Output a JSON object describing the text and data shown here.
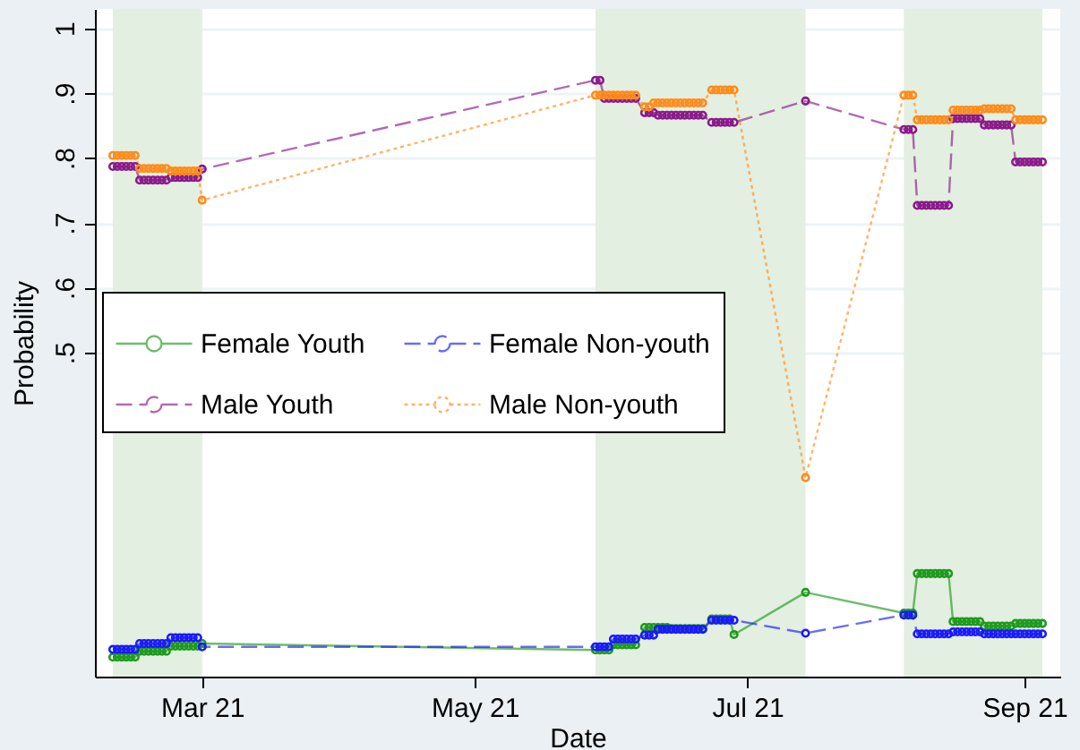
{
  "chart_data": {
    "type": "line",
    "xlabel": "Date",
    "ylabel": "Probability",
    "x": [
      "2021-02-09",
      "2021-02-10",
      "2021-02-11",
      "2021-02-12",
      "2021-02-13",
      "2021-02-14",
      "2021-02-15",
      "2021-02-16",
      "2021-02-17",
      "2021-02-18",
      "2021-02-19",
      "2021-02-20",
      "2021-02-21",
      "2021-02-22",
      "2021-02-23",
      "2021-02-24",
      "2021-02-25",
      "2021-02-26",
      "2021-02-27",
      "2021-02-28",
      "2021-03-01",
      "2021-05-28",
      "2021-05-29",
      "2021-05-30",
      "2021-05-31",
      "2021-06-01",
      "2021-06-02",
      "2021-06-03",
      "2021-06-04",
      "2021-06-05",
      "2021-06-06",
      "2021-06-08",
      "2021-06-09",
      "2021-06-10",
      "2021-06-11",
      "2021-06-12",
      "2021-06-13",
      "2021-06-14",
      "2021-06-15",
      "2021-06-16",
      "2021-06-17",
      "2021-06-18",
      "2021-06-19",
      "2021-06-20",
      "2021-06-21",
      "2021-06-23",
      "2021-06-24",
      "2021-06-25",
      "2021-06-26",
      "2021-06-27",
      "2021-06-28",
      "2021-07-14",
      "2021-08-05",
      "2021-08-06",
      "2021-08-07",
      "2021-08-08",
      "2021-08-09",
      "2021-08-10",
      "2021-08-11",
      "2021-08-12",
      "2021-08-13",
      "2021-08-14",
      "2021-08-15",
      "2021-08-16",
      "2021-08-17",
      "2021-08-18",
      "2021-08-19",
      "2021-08-20",
      "2021-08-21",
      "2021-08-22",
      "2021-08-23",
      "2021-08-24",
      "2021-08-25",
      "2021-08-26",
      "2021-08-27",
      "2021-08-28",
      "2021-08-29",
      "2021-08-30",
      "2021-08-31",
      "2021-09-01",
      "2021-09-02",
      "2021-09-03",
      "2021-09-04",
      "2021-09-05"
    ],
    "series": [
      {
        "name": "Female Youth",
        "color": "#1e9a1e",
        "line_style": "solid",
        "values": [
          0.03,
          0.03,
          0.03,
          0.03,
          0.03,
          0.03,
          0.039,
          0.039,
          0.039,
          0.039,
          0.039,
          0.039,
          0.039,
          0.047,
          0.047,
          0.047,
          0.047,
          0.047,
          0.047,
          0.047,
          0.051,
          0.041,
          0.041,
          0.041,
          0.041,
          0.049,
          0.049,
          0.049,
          0.049,
          0.049,
          0.049,
          0.076,
          0.076,
          0.076,
          0.076,
          0.076,
          0.076,
          0.074,
          0.074,
          0.074,
          0.074,
          0.074,
          0.074,
          0.074,
          0.074,
          0.089,
          0.089,
          0.089,
          0.089,
          0.089,
          0.065,
          0.13,
          0.098,
          0.098,
          0.098,
          0.159,
          0.159,
          0.159,
          0.159,
          0.159,
          0.159,
          0.159,
          0.159,
          0.085,
          0.085,
          0.085,
          0.085,
          0.085,
          0.085,
          0.085,
          0.078,
          0.078,
          0.078,
          0.078,
          0.078,
          0.078,
          0.078,
          0.082,
          0.082,
          0.082,
          0.082,
          0.082,
          0.082,
          0.082
        ]
      },
      {
        "name": "Female Non-youth",
        "color": "#1a1aff",
        "line_style": "dashed",
        "values": [
          0.042,
          0.042,
          0.042,
          0.042,
          0.042,
          0.042,
          0.051,
          0.051,
          0.051,
          0.051,
          0.051,
          0.051,
          0.051,
          0.06,
          0.06,
          0.06,
          0.06,
          0.06,
          0.06,
          0.06,
          0.046,
          0.046,
          0.046,
          0.046,
          0.046,
          0.058,
          0.058,
          0.058,
          0.058,
          0.058,
          0.058,
          0.064,
          0.064,
          0.064,
          0.073,
          0.073,
          0.073,
          0.073,
          0.073,
          0.073,
          0.073,
          0.073,
          0.073,
          0.073,
          0.073,
          0.087,
          0.087,
          0.087,
          0.087,
          0.087,
          0.087,
          0.067,
          0.095,
          0.095,
          0.095,
          0.066,
          0.066,
          0.066,
          0.066,
          0.066,
          0.066,
          0.066,
          0.066,
          0.069,
          0.069,
          0.069,
          0.069,
          0.069,
          0.069,
          0.069,
          0.066,
          0.066,
          0.066,
          0.066,
          0.066,
          0.066,
          0.066,
          0.066,
          0.066,
          0.066,
          0.066,
          0.066,
          0.066,
          0.066
        ]
      },
      {
        "name": "Male Youth",
        "color": "#8b1a8b",
        "line_style": "dashed",
        "values": [
          0.787,
          0.787,
          0.787,
          0.787,
          0.787,
          0.787,
          0.766,
          0.766,
          0.766,
          0.766,
          0.766,
          0.766,
          0.766,
          0.77,
          0.77,
          0.77,
          0.77,
          0.77,
          0.77,
          0.77,
          0.783,
          0.92,
          0.92,
          0.892,
          0.892,
          0.892,
          0.892,
          0.892,
          0.892,
          0.892,
          0.892,
          0.87,
          0.87,
          0.87,
          0.866,
          0.866,
          0.866,
          0.866,
          0.866,
          0.866,
          0.866,
          0.866,
          0.866,
          0.866,
          0.866,
          0.855,
          0.855,
          0.855,
          0.855,
          0.855,
          0.855,
          0.888,
          0.844,
          0.844,
          0.844,
          0.727,
          0.727,
          0.727,
          0.727,
          0.727,
          0.727,
          0.727,
          0.727,
          0.861,
          0.861,
          0.861,
          0.861,
          0.861,
          0.861,
          0.861,
          0.851,
          0.851,
          0.851,
          0.851,
          0.851,
          0.851,
          0.851,
          0.794,
          0.794,
          0.794,
          0.794,
          0.794,
          0.794,
          0.794
        ]
      },
      {
        "name": "Male Non-youth",
        "color": "#ff8c1a",
        "line_style": "dotted",
        "values": [
          0.804,
          0.804,
          0.804,
          0.804,
          0.804,
          0.804,
          0.784,
          0.784,
          0.784,
          0.784,
          0.784,
          0.784,
          0.784,
          0.78,
          0.78,
          0.78,
          0.78,
          0.78,
          0.78,
          0.78,
          0.735,
          0.897,
          0.897,
          0.897,
          0.897,
          0.897,
          0.897,
          0.897,
          0.897,
          0.897,
          0.897,
          0.879,
          0.879,
          0.885,
          0.885,
          0.885,
          0.885,
          0.885,
          0.885,
          0.885,
          0.885,
          0.885,
          0.885,
          0.885,
          0.885,
          0.905,
          0.905,
          0.905,
          0.905,
          0.905,
          0.905,
          0.307,
          0.897,
          0.897,
          0.897,
          0.859,
          0.859,
          0.859,
          0.859,
          0.859,
          0.859,
          0.859,
          0.859,
          0.874,
          0.874,
          0.874,
          0.874,
          0.874,
          0.874,
          0.874,
          0.876,
          0.876,
          0.876,
          0.876,
          0.876,
          0.876,
          0.876,
          0.859,
          0.859,
          0.859,
          0.859,
          0.859,
          0.859,
          0.859
        ]
      }
    ],
    "xlim": [
      "2021-02-05",
      "2021-09-09"
    ],
    "xticks": [
      {
        "value": "2021-03-01",
        "label": "Mar 21"
      },
      {
        "value": "2021-05-01",
        "label": "May 21"
      },
      {
        "value": "2021-07-01",
        "label": "Jul 21"
      },
      {
        "value": "2021-09-01",
        "label": "Sep 21"
      }
    ],
    "ylim": [
      0,
      1.03
    ],
    "yticks": [
      {
        "value": 0.5,
        "label": ".5"
      },
      {
        "value": 0.6,
        "label": ".6"
      },
      {
        "value": 0.7,
        "label": ".7"
      },
      {
        "value": 0.8,
        "label": ".8"
      },
      {
        "value": 0.9,
        "label": ".9"
      },
      {
        "value": 1,
        "label": "1"
      }
    ],
    "bands": [
      {
        "axis": "x",
        "from": "2021-02-09",
        "to": "2021-03-01",
        "color": "#e3efe0"
      },
      {
        "axis": "x",
        "from": "2021-05-28",
        "to": "2021-07-14",
        "color": "#e3efe0"
      },
      {
        "axis": "x",
        "from": "2021-08-05",
        "to": "2021-09-05",
        "color": "#e3efe0"
      }
    ],
    "grid": "y",
    "legend": "left",
    "marker": "circle"
  }
}
